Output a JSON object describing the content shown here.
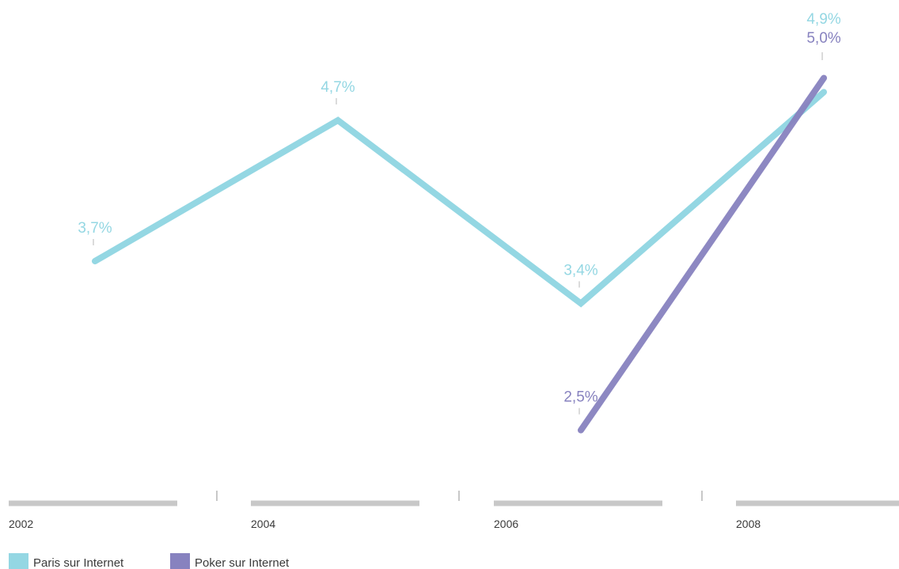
{
  "chart_data": {
    "type": "line",
    "title": "",
    "xlabel": "",
    "ylabel": "",
    "grid": false,
    "legend_position": "bottom-left",
    "x": [
      "2002",
      "2004",
      "2006",
      "2008"
    ],
    "ylim": [
      0,
      6
    ],
    "series": [
      {
        "name": "Paris sur Internet",
        "color": "#94d7e3",
        "values": [
          3.7,
          4.7,
          3.4,
          4.9
        ],
        "labels": [
          "3,7%",
          "4,7%",
          "3,4%",
          "4,9%"
        ]
      },
      {
        "name": "Poker sur Internet",
        "color": "#8782bf",
        "values": [
          null,
          null,
          2.5,
          5.0
        ],
        "labels": [
          null,
          null,
          "2,5%",
          "5,0%"
        ]
      }
    ]
  }
}
